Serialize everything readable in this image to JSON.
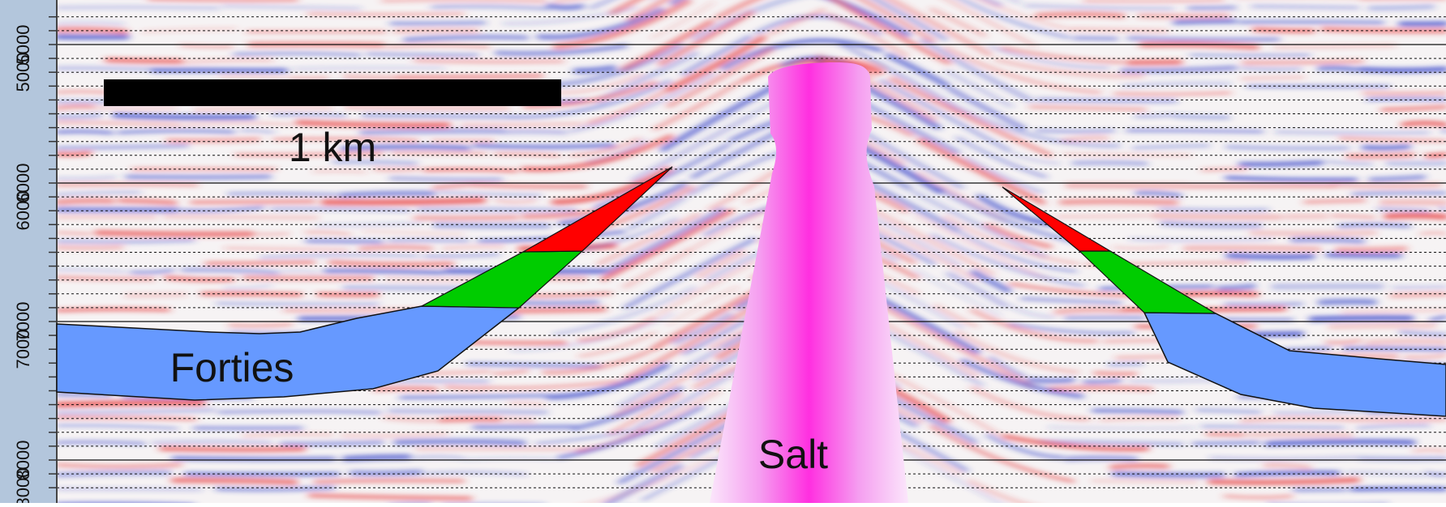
{
  "axis": {
    "ticks": [
      {
        "label": "5000",
        "value": 5000
      },
      {
        "label": "6000",
        "value": 6000
      },
      {
        "label": "7000",
        "value": 7000
      },
      {
        "label": "8000",
        "value": 8000
      }
    ],
    "guideline_spacing": 100
  },
  "scale_bar": {
    "label": "1 km"
  },
  "layers": {
    "forties": {
      "label": "Forties",
      "color": "#6699ff"
    },
    "salt": {
      "label": "Salt",
      "color": "#ff33dd"
    }
  },
  "colors": {
    "oil_zone": "#ff0000",
    "water_leg": "#00cc00",
    "axis_strip": "#b3c6dc",
    "seismic_red": "#e84040",
    "seismic_blue": "#3040c8"
  }
}
